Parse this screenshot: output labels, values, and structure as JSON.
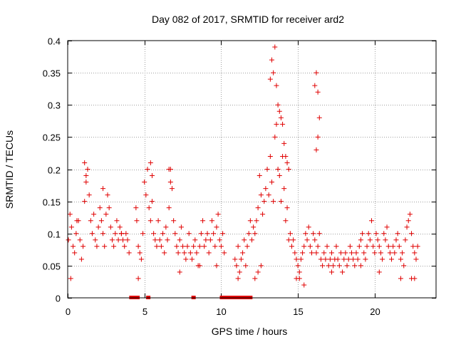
{
  "chart_data": {
    "type": "scatter",
    "title": "Day 082 of 2017, SRMTID for receiver ard2",
    "xlabel": "GPS time / hours",
    "ylabel": "SRMTID / TECUs",
    "xlim": [
      0,
      24
    ],
    "ylim": [
      0,
      0.4
    ],
    "xticks": [
      0,
      5,
      10,
      15,
      20
    ],
    "xtick_labels": [
      "0",
      "5",
      "10",
      "15",
      "20"
    ],
    "yticks": [
      0,
      0.05,
      0.1,
      0.15,
      0.2,
      0.25,
      0.3,
      0.35,
      0.4
    ],
    "ytick_labels": [
      "0",
      "0.05",
      "0.1",
      "0.15",
      "0.2",
      "0.25",
      "0.3",
      "0.35",
      "0.4"
    ],
    "grid": true,
    "marker": "plus",
    "color": "#e00000",
    "series": [
      {
        "name": "SRMTID",
        "x": [
          0.05,
          0.15,
          0.25,
          0.35,
          0.45,
          0.55,
          0.7,
          0.8,
          0.9,
          1.0,
          1.1,
          1.2,
          1.3,
          1.4,
          1.5,
          1.6,
          1.7,
          1.8,
          1.9,
          2.0,
          2.1,
          2.2,
          2.3,
          2.4,
          2.5,
          2.6,
          2.7,
          2.8,
          2.9,
          3.0,
          3.1,
          3.2,
          3.3,
          3.4,
          3.5,
          3.6,
          3.7,
          3.8,
          3.9,
          4.0,
          4.45,
          4.5,
          4.6,
          4.7,
          4.8,
          4.9,
          5.0,
          5.1,
          5.2,
          5.3,
          5.4,
          5.5,
          5.6,
          5.7,
          5.8,
          5.9,
          6.0,
          6.1,
          6.2,
          6.3,
          6.4,
          6.5,
          6.6,
          6.7,
          6.8,
          6.9,
          7.0,
          7.1,
          7.2,
          7.3,
          7.4,
          7.5,
          7.6,
          7.7,
          7.8,
          7.9,
          8.0,
          8.1,
          8.2,
          8.3,
          8.4,
          8.5,
          8.6,
          8.7,
          8.8,
          8.9,
          9.0,
          9.1,
          9.2,
          9.3,
          9.4,
          9.5,
          9.6,
          9.7,
          9.8,
          9.9,
          10.0,
          10.1,
          10.2,
          10.9,
          11.0,
          11.1,
          11.2,
          11.3,
          11.4,
          11.5,
          11.6,
          11.7,
          11.8,
          11.9,
          12.0,
          12.1,
          12.2,
          12.3,
          12.4,
          12.5,
          12.6,
          12.7,
          12.8,
          12.9,
          13.0,
          13.1,
          13.2,
          13.3,
          13.4,
          13.5,
          13.6,
          13.7,
          13.8,
          13.9,
          14.0,
          14.1,
          14.2,
          14.3,
          14.4,
          14.5,
          14.6,
          14.7,
          14.8,
          14.9,
          15.0,
          15.1,
          15.2,
          15.3,
          15.4,
          15.5,
          15.6,
          15.7,
          15.8,
          15.9,
          16.0,
          16.1,
          16.2,
          16.3,
          16.4,
          16.5,
          16.6,
          16.7,
          16.8,
          16.9,
          17.0,
          17.1,
          17.2,
          17.3,
          17.4,
          17.5,
          17.6,
          17.7,
          17.8,
          17.9,
          18.0,
          18.1,
          18.2,
          18.3,
          18.4,
          18.5,
          18.6,
          18.7,
          18.8,
          18.9,
          19.0,
          19.1,
          19.2,
          19.3,
          19.4,
          19.5,
          19.6,
          19.7,
          19.8,
          19.9,
          20.0,
          20.1,
          20.2,
          20.3,
          20.4,
          20.5,
          20.6,
          20.7,
          20.8,
          20.9,
          21.0,
          21.1,
          21.2,
          21.3,
          21.4,
          21.5,
          21.6,
          21.7,
          21.8,
          21.9,
          22.0,
          22.1,
          22.2,
          22.3,
          22.4,
          22.5,
          22.6,
          22.7,
          22.8,
          13.2,
          13.3,
          13.4,
          13.5,
          13.6,
          13.7,
          13.8,
          13.9,
          14.0,
          14.1,
          14.2,
          14.3,
          14.4,
          16.1,
          16.2,
          16.3,
          16.4,
          16.2,
          16.3,
          1.1,
          1.2,
          2.3,
          5.4,
          5.5,
          6.6,
          6.7,
          0.2,
          4.6,
          7.3,
          9.7,
          12.2,
          12.4,
          12.6,
          15.1,
          15.4,
          17.2,
          19.1,
          20.3,
          21.7,
          22.4,
          22.6,
          0.6,
          3.5,
          8.6,
          11.1,
          14.9
        ],
        "y": [
          0.09,
          0.13,
          0.11,
          0.08,
          0.07,
          0.1,
          0.12,
          0.09,
          0.06,
          0.08,
          0.15,
          0.18,
          0.2,
          0.16,
          0.12,
          0.1,
          0.13,
          0.09,
          0.08,
          0.11,
          0.14,
          0.12,
          0.1,
          0.08,
          0.13,
          0.16,
          0.14,
          0.11,
          0.09,
          0.08,
          0.1,
          0.12,
          0.09,
          0.11,
          0.1,
          0.09,
          0.08,
          0.1,
          0.09,
          0.07,
          0.14,
          0.12,
          0.08,
          0.07,
          0.06,
          0.1,
          0.18,
          0.16,
          0.2,
          0.14,
          0.12,
          0.15,
          0.1,
          0.09,
          0.08,
          0.12,
          0.09,
          0.08,
          0.1,
          0.07,
          0.11,
          0.09,
          0.14,
          0.2,
          0.17,
          0.12,
          0.1,
          0.08,
          0.07,
          0.09,
          0.11,
          0.08,
          0.07,
          0.06,
          0.08,
          0.1,
          0.07,
          0.06,
          0.08,
          0.09,
          0.07,
          0.05,
          0.08,
          0.1,
          0.12,
          0.08,
          0.09,
          0.1,
          0.07,
          0.09,
          0.12,
          0.1,
          0.08,
          0.11,
          0.13,
          0.09,
          0.08,
          0.1,
          0.07,
          0.06,
          0.05,
          0.08,
          0.04,
          0.06,
          0.07,
          0.09,
          0.05,
          0.08,
          0.1,
          0.12,
          0.09,
          0.11,
          0.1,
          0.12,
          0.14,
          0.19,
          0.16,
          0.13,
          0.15,
          0.17,
          0.2,
          0.16,
          0.22,
          0.18,
          0.15,
          0.25,
          0.27,
          0.2,
          0.19,
          0.15,
          0.22,
          0.17,
          0.12,
          0.14,
          0.09,
          0.1,
          0.08,
          0.09,
          0.07,
          0.06,
          0.05,
          0.04,
          0.06,
          0.07,
          0.08,
          0.1,
          0.09,
          0.11,
          0.08,
          0.07,
          0.1,
          0.09,
          0.07,
          0.08,
          0.1,
          0.06,
          0.05,
          0.07,
          0.06,
          0.08,
          0.05,
          0.06,
          0.07,
          0.05,
          0.06,
          0.08,
          0.06,
          0.05,
          0.07,
          0.04,
          0.06,
          0.07,
          0.05,
          0.06,
          0.08,
          0.07,
          0.06,
          0.05,
          0.07,
          0.06,
          0.08,
          0.09,
          0.1,
          0.07,
          0.06,
          0.08,
          0.1,
          0.09,
          0.12,
          0.08,
          0.07,
          0.1,
          0.09,
          0.08,
          0.07,
          0.06,
          0.1,
          0.09,
          0.11,
          0.08,
          0.07,
          0.06,
          0.08,
          0.07,
          0.09,
          0.1,
          0.08,
          0.06,
          0.07,
          0.05,
          0.09,
          0.11,
          0.12,
          0.13,
          0.1,
          0.08,
          0.07,
          0.06,
          0.08,
          0.34,
          0.37,
          0.35,
          0.39,
          0.33,
          0.3,
          0.29,
          0.28,
          0.27,
          0.24,
          0.22,
          0.21,
          0.2,
          0.33,
          0.35,
          0.32,
          0.28,
          0.23,
          0.25,
          0.21,
          0.19,
          0.17,
          0.21,
          0.19,
          0.2,
          0.18,
          0.03,
          0.03,
          0.04,
          0.05,
          0.03,
          0.04,
          0.05,
          0.03,
          0.02,
          0.04,
          0.05,
          0.04,
          0.03,
          0.03,
          0.03,
          0.12,
          0.1,
          0.05,
          0.03,
          0.03
        ]
      }
    ],
    "zero_markers_x": [
      4.15,
      4.25,
      4.35,
      4.55,
      5.25,
      8.2,
      10.05,
      10.3,
      10.4,
      10.5,
      10.6,
      10.75,
      10.9,
      11.05,
      11.2,
      11.4,
      11.6,
      11.75,
      11.9
    ]
  }
}
